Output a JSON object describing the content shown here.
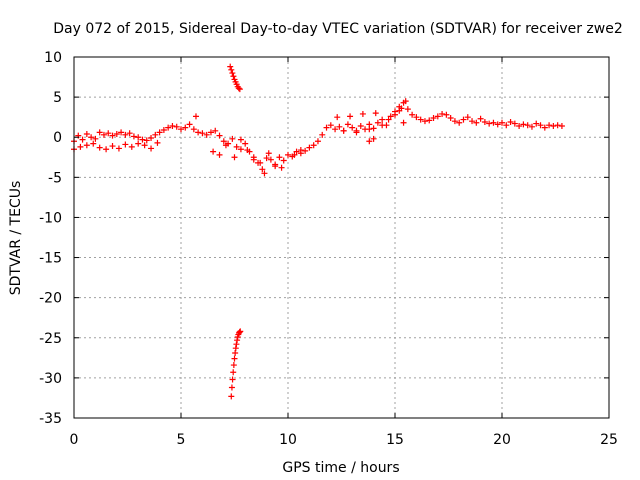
{
  "chart_data": {
    "type": "scatter",
    "title": "Day 072 of 2015, Sidereal Day-to-day VTEC variation (SDTVAR) for receiver zwe2",
    "xlabel": "GPS time / hours",
    "ylabel": "SDTVAR / TECUs",
    "xlim": [
      0,
      25
    ],
    "ylim": [
      -35,
      10
    ],
    "xticks": [
      0,
      5,
      10,
      15,
      20,
      25
    ],
    "yticks": [
      -35,
      -30,
      -25,
      -20,
      -15,
      -10,
      -5,
      0,
      5,
      10
    ],
    "grid": true,
    "legend": "none",
    "marker": "+",
    "series": [
      {
        "name": "SDTVAR",
        "color": "#ff0000",
        "x": [
          0.0,
          0.2,
          0.4,
          0.6,
          0.8,
          1.0,
          1.2,
          1.4,
          1.6,
          1.8,
          2.0,
          2.2,
          2.4,
          2.6,
          2.8,
          3.0,
          3.2,
          3.4,
          3.6,
          3.8,
          4.0,
          4.2,
          4.4,
          4.6,
          4.8,
          5.0,
          5.2,
          5.4,
          5.6,
          5.8,
          6.0,
          6.2,
          6.4,
          6.6,
          6.8,
          7.0,
          7.2,
          7.4,
          7.6,
          7.8,
          8.0,
          8.2,
          8.4,
          8.6,
          8.8,
          9.0,
          9.2,
          9.4,
          9.6,
          9.8,
          10.0,
          10.2,
          10.4,
          10.6,
          10.8,
          11.0,
          11.2,
          11.4,
          11.6,
          11.8,
          12.0,
          12.2,
          12.4,
          12.6,
          12.8,
          13.0,
          13.2,
          13.4,
          13.6,
          13.8,
          14.0,
          14.2,
          14.4,
          14.6,
          14.8,
          15.0,
          15.2,
          15.4,
          15.6,
          15.8,
          16.0,
          16.2,
          16.4,
          16.6,
          16.8,
          17.0,
          17.2,
          17.4,
          17.6,
          17.8,
          18.0,
          18.2,
          18.4,
          18.6,
          18.8,
          19.0,
          19.2,
          19.4,
          19.6,
          19.8,
          20.0,
          20.2,
          20.4,
          20.6,
          20.8,
          21.0,
          21.2,
          21.4,
          21.6,
          21.8,
          22.0,
          22.2,
          22.4,
          22.6,
          22.8,
          0.0,
          0.3,
          0.6,
          0.9,
          1.2,
          1.5,
          1.8,
          2.1,
          2.4,
          2.7,
          3.0,
          3.3,
          3.6,
          3.9,
          6.5,
          6.8,
          7.1,
          7.5,
          7.8,
          8.1,
          8.4,
          8.7,
          8.9,
          9.1,
          9.4,
          9.7,
          10.3,
          10.6,
          12.3,
          12.6,
          12.9,
          13.2,
          13.5,
          13.8,
          14.1,
          14.4,
          14.7,
          15.0,
          15.3,
          15.5,
          7.3,
          7.35,
          7.4,
          7.45,
          7.5,
          7.55,
          7.6,
          7.65,
          7.7,
          7.75,
          7.35,
          7.38,
          7.41,
          7.44,
          7.47,
          7.5,
          7.53,
          7.56,
          7.59,
          7.62,
          7.65,
          7.68,
          7.71,
          7.74,
          7.77,
          5.7,
          13.8,
          14.0,
          15.4,
          15.2
        ],
        "y": [
          -0.5,
          0.2,
          -0.3,
          0.4,
          0.0,
          -0.2,
          0.6,
          0.3,
          0.5,
          0.2,
          0.4,
          0.6,
          0.3,
          0.5,
          0.1,
          0.0,
          -0.3,
          -0.4,
          -0.1,
          0.3,
          0.6,
          0.9,
          1.2,
          1.4,
          1.3,
          1.0,
          1.2,
          1.6,
          1.0,
          0.6,
          0.5,
          0.3,
          0.6,
          0.8,
          0.2,
          -0.5,
          -0.8,
          -0.2,
          -1.2,
          -1.5,
          -0.8,
          -1.8,
          -2.5,
          -3.2,
          -4.0,
          -2.6,
          -2.8,
          -3.6,
          -2.5,
          -2.9,
          -2.2,
          -2.4,
          -1.8,
          -2.0,
          -1.7,
          -1.3,
          -1.0,
          -0.5,
          0.3,
          1.2,
          1.5,
          1.0,
          1.3,
          0.8,
          1.6,
          1.2,
          0.8,
          1.4,
          1.0,
          1.6,
          1.1,
          1.8,
          2.2,
          1.5,
          2.6,
          3.2,
          3.8,
          4.3,
          3.5,
          2.8,
          2.5,
          2.2,
          2.0,
          2.1,
          2.4,
          2.6,
          2.9,
          2.8,
          2.4,
          2.0,
          1.8,
          2.2,
          2.5,
          2.0,
          1.8,
          2.3,
          1.9,
          1.7,
          1.8,
          1.6,
          1.8,
          1.5,
          1.9,
          1.7,
          1.4,
          1.6,
          1.5,
          1.3,
          1.7,
          1.5,
          1.2,
          1.5,
          1.4,
          1.5,
          1.4,
          -1.5,
          -1.2,
          -1.0,
          -0.8,
          -1.3,
          -1.5,
          -1.1,
          -1.4,
          -0.9,
          -1.2,
          -0.8,
          -1.0,
          -1.4,
          -0.7,
          -1.8,
          -2.2,
          -1.0,
          -2.5,
          -0.3,
          -1.6,
          -2.8,
          -3.2,
          -4.5,
          -2.0,
          -3.4,
          -3.8,
          -2.2,
          -1.6,
          2.5,
          0.8,
          2.6,
          0.6,
          2.9,
          1.0,
          3.0,
          1.5,
          2.2,
          2.8,
          3.6,
          4.5,
          8.8,
          8.4,
          8.0,
          7.6,
          7.2,
          6.9,
          6.6,
          6.3,
          6.1,
          6.0,
          -32.3,
          -31.2,
          -30.2,
          -29.3,
          -28.4,
          -27.6,
          -26.9,
          -26.3,
          -25.8,
          -25.3,
          -24.9,
          -24.6,
          -24.4,
          -24.3,
          -24.2,
          2.6,
          -0.5,
          -0.2,
          1.8,
          3.3
        ]
      }
    ]
  }
}
